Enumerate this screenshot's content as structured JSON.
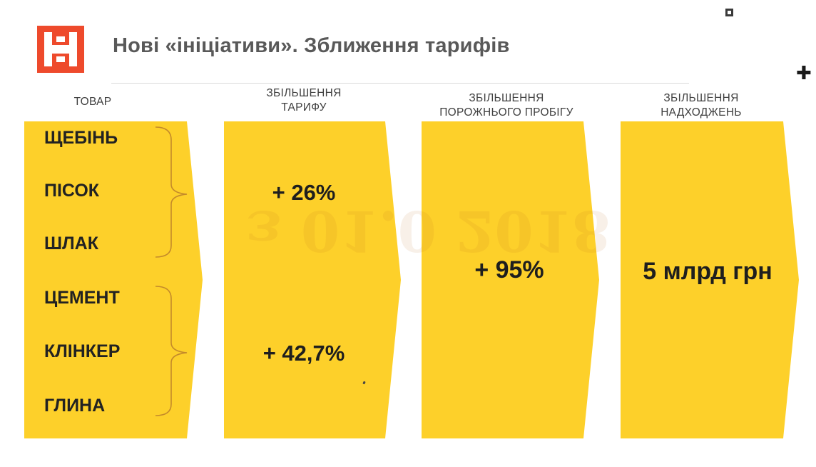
{
  "slide": {
    "title": "Нові «ініціативи». Зближення тарифів",
    "watermark_text": "з 01.0 2018",
    "colors": {
      "panel_yellow": "#fdd02a",
      "logo_red": "#ee4a2c",
      "title_gray": "#595959",
      "text_dark": "#222222"
    }
  },
  "columns": {
    "goods_header": "ТОВАР",
    "tariff_header_line1": "ЗБІЛЬШЕННЯ",
    "tariff_header_line2": "ТАРИФУ",
    "empty_run_header_line1": "ЗБІЛЬШЕННЯ",
    "empty_run_header_line2": "ПОРОЖНЬОГО ПРОБІГУ",
    "revenue_header_line1": "ЗБІЛЬШЕННЯ",
    "revenue_header_line2": "НАДХОДЖЕНЬ"
  },
  "goods": {
    "group1": [
      "ЩЕБІНЬ",
      "ПІСОК",
      "ШЛАК"
    ],
    "group2": [
      "ЦЕМЕНТ",
      "КЛІНКЕР",
      "ГЛИНА"
    ]
  },
  "values": {
    "tariff_group1": "+ 26%",
    "tariff_group2": "+ 42,7%",
    "empty_run": "+ 95%",
    "revenue": "5 млрд грн"
  }
}
